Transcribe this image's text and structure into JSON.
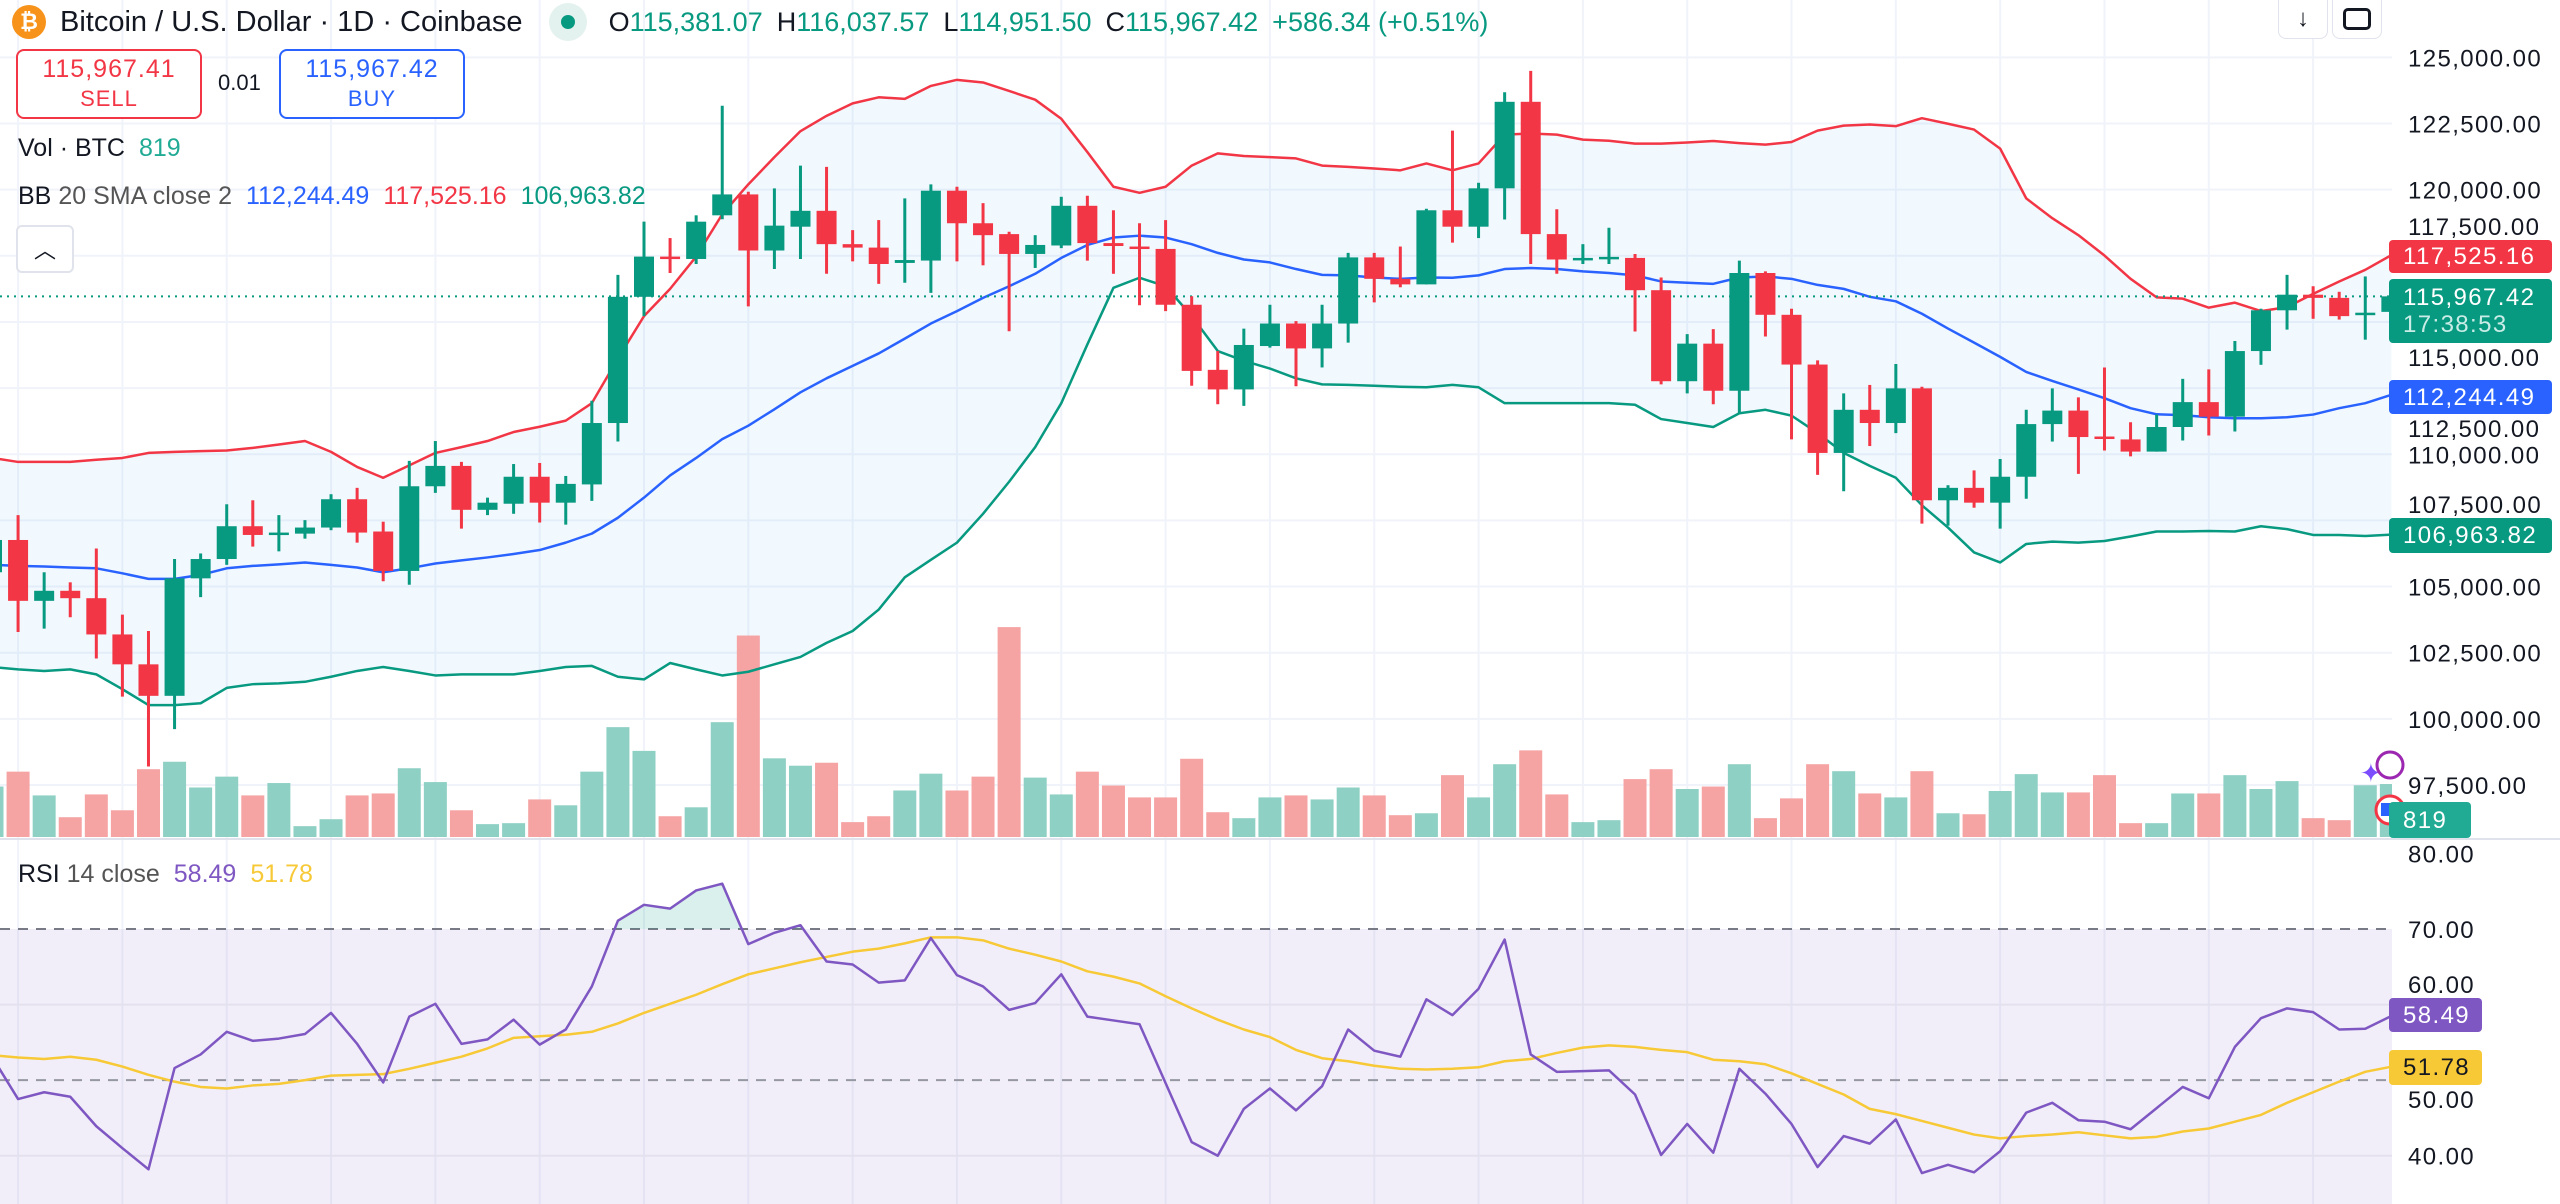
{
  "header": {
    "symbol_title": "Bitcoin / U.S. Dollar · 1D · Coinbase",
    "icon": "bitcoin-icon",
    "ohlc": [
      {
        "label": "O",
        "value": "115,381.07"
      },
      {
        "label": "H",
        "value": "116,037.57"
      },
      {
        "label": "L",
        "value": "114,951.50"
      },
      {
        "label": "C",
        "value": "115,967.42"
      }
    ],
    "change": "+586.34 (+0.51%)"
  },
  "toolbar": {
    "download_icon": "arrow-down-icon",
    "fullscreen_icon": "fullscreen-icon"
  },
  "trade": {
    "sell_price": "115,967.41",
    "sell_label": "SELL",
    "spread": "0.01",
    "buy_price": "115,967.42",
    "buy_label": "BUY"
  },
  "legends": {
    "volume": {
      "name": "Vol · BTC",
      "value": "819"
    },
    "bb": {
      "name": "BB",
      "params": "20 SMA close 2",
      "basis": "112,244.49",
      "upper": "117,525.16",
      "lower": "106,963.82"
    },
    "rsi": {
      "name": "RSI",
      "params": "14 close",
      "value": "58.49",
      "ma": "51.78"
    },
    "collapse_icon": "chevron-up-icon"
  },
  "axis_tags": {
    "bb_upper": "117,525.16",
    "last_price": "115,967.42",
    "countdown": "17:38:53",
    "bb_basis": "112,244.49",
    "bb_lower": "106,963.82",
    "volume": "819",
    "rsi": "58.49",
    "rsi_ma": "51.78"
  },
  "colors": {
    "up": "#089981",
    "down": "#F23645",
    "vol_up": "#8fd0c5",
    "vol_down": "#f5a3a3",
    "bb_upper": "#F23645",
    "bb_basis": "#2962FF",
    "bb_lower": "#089981",
    "rsi": "#7E57C2",
    "rsi_ma": "#F7C936",
    "bitcoin": "#F7931A"
  },
  "chart_data": {
    "type": "candlestick",
    "price_axis_labels": [
      "125,000.00",
      "122,500.00",
      "120,000.00",
      "117,500.00",
      "115,000.00",
      "112,500.00",
      "110,000.00",
      "107,500.00",
      "105,000.00",
      "102,500.00",
      "100,000.00",
      "97,500.00"
    ],
    "rsi_axis_labels": [
      "80.00",
      "70.00",
      "60.00",
      "50.00",
      "40.00"
    ],
    "rsi_levels": {
      "upper": 70,
      "middle": 50
    },
    "ohlc": [
      [
        105540,
        107230,
        105160,
        106760
      ],
      [
        106760,
        107700,
        103280,
        104460
      ],
      [
        104460,
        105540,
        103410,
        104840
      ],
      [
        104840,
        105160,
        103840,
        104560
      ],
      [
        104560,
        106440,
        102280,
        103190
      ],
      [
        103190,
        103940,
        100840,
        102060
      ],
      [
        102060,
        103320,
        98200,
        100870
      ],
      [
        100870,
        106040,
        99610,
        105310
      ],
      [
        105310,
        106250,
        104600,
        106040
      ],
      [
        106040,
        108110,
        105820,
        107280
      ],
      [
        107280,
        108260,
        106510,
        106950
      ],
      [
        106950,
        107700,
        106330,
        107040
      ],
      [
        107000,
        107510,
        106810,
        107230
      ],
      [
        107230,
        108490,
        107130,
        108300
      ],
      [
        108300,
        108730,
        106660,
        107040
      ],
      [
        107080,
        107450,
        105200,
        105590
      ],
      [
        105590,
        109750,
        105070,
        108790
      ],
      [
        108790,
        110500,
        108540,
        109560
      ],
      [
        109560,
        109710,
        107190,
        107900
      ],
      [
        107900,
        108360,
        107700,
        108170
      ],
      [
        108130,
        109630,
        107750,
        109150
      ],
      [
        109150,
        109670,
        107420,
        108170
      ],
      [
        108170,
        109180,
        107340,
        108880
      ],
      [
        108860,
        112020,
        108240,
        111180
      ],
      [
        111180,
        116780,
        110480,
        115950
      ],
      [
        115950,
        118790,
        115220,
        117470
      ],
      [
        117470,
        118170,
        116850,
        117380
      ],
      [
        117380,
        119030,
        117190,
        118790
      ],
      [
        119030,
        123170,
        118880,
        119820
      ],
      [
        119820,
        119920,
        115590,
        117700
      ],
      [
        117700,
        120050,
        117000,
        118640
      ],
      [
        118600,
        120910,
        117380,
        119200
      ],
      [
        119200,
        120860,
        116820,
        117940
      ],
      [
        117940,
        118470,
        117290,
        117810
      ],
      [
        117810,
        118850,
        116440,
        117190
      ],
      [
        117230,
        119670,
        116480,
        117340
      ],
      [
        117320,
        120200,
        116100,
        119960
      ],
      [
        119960,
        120110,
        117290,
        118730
      ],
      [
        118730,
        119490,
        117140,
        118280
      ],
      [
        118320,
        118410,
        114650,
        117570
      ],
      [
        117570,
        118280,
        117040,
        117910
      ],
      [
        117890,
        119730,
        117790,
        119390
      ],
      [
        119390,
        119770,
        117320,
        117980
      ],
      [
        117980,
        119220,
        116820,
        117870
      ],
      [
        117850,
        118730,
        115630,
        117760
      ],
      [
        117760,
        118850,
        115410,
        115650
      ],
      [
        115650,
        115970,
        112590,
        113150
      ],
      [
        113190,
        113900,
        111890,
        112450
      ],
      [
        112450,
        114750,
        111830,
        114130
      ],
      [
        114090,
        115650,
        114030,
        114940
      ],
      [
        114940,
        115030,
        112570,
        114000
      ],
      [
        114000,
        115650,
        113280,
        114940
      ],
      [
        114940,
        117610,
        114220,
        117440
      ],
      [
        117440,
        117610,
        115740,
        116630
      ],
      [
        116630,
        117850,
        116310,
        116420
      ],
      [
        116420,
        119280,
        116420,
        119220
      ],
      [
        119220,
        122230,
        118000,
        118600
      ],
      [
        118600,
        120260,
        118170,
        120050
      ],
      [
        120050,
        123680,
        118870,
        123320
      ],
      [
        123320,
        124490,
        117190,
        118320
      ],
      [
        118320,
        119260,
        116820,
        117360
      ],
      [
        117340,
        117940,
        117190,
        117420
      ],
      [
        117380,
        118560,
        117190,
        117460
      ],
      [
        117420,
        117570,
        114640,
        116200
      ],
      [
        116200,
        116680,
        112640,
        112760
      ],
      [
        112760,
        114540,
        112300,
        114180
      ],
      [
        114180,
        114730,
        111890,
        112400
      ],
      [
        112400,
        117320,
        111550,
        116850
      ],
      [
        116850,
        116910,
        114450,
        115270
      ],
      [
        115270,
        115500,
        110560,
        113390
      ],
      [
        113390,
        113550,
        109220,
        110050
      ],
      [
        110050,
        112300,
        108600,
        111680
      ],
      [
        111680,
        112620,
        110310,
        111180
      ],
      [
        111180,
        113410,
        110800,
        112490
      ],
      [
        112490,
        112550,
        107380,
        108260
      ],
      [
        108260,
        108830,
        107300,
        108730
      ],
      [
        108730,
        109390,
        107980,
        108170
      ],
      [
        108170,
        109820,
        107190,
        109150
      ],
      [
        109150,
        111680,
        108320,
        111140
      ],
      [
        111140,
        112490,
        110480,
        111650
      ],
      [
        111650,
        112150,
        109260,
        110650
      ],
      [
        110670,
        113280,
        110140,
        110610
      ],
      [
        110560,
        111210,
        109920,
        110100
      ],
      [
        110100,
        111500,
        110100,
        111030
      ],
      [
        111030,
        112850,
        110520,
        111970
      ],
      [
        111970,
        113210,
        110710,
        111420
      ],
      [
        111420,
        114280,
        110860,
        113900
      ],
      [
        113900,
        115500,
        113380,
        115440
      ],
      [
        115440,
        116780,
        114710,
        116030
      ],
      [
        116030,
        116350,
        115120,
        115910
      ],
      [
        115910,
        116140,
        115090,
        115220
      ],
      [
        115270,
        116720,
        114330,
        115350
      ],
      [
        115381.07,
        116037.57,
        114951.5,
        115967.42
      ]
    ],
    "volume": [
      780,
      1010,
      643,
      306,
      658,
      413,
      1048,
      1163,
      765,
      933,
      643,
      834,
      168,
      275,
      643,
      673,
      1063,
      849,
      413,
      199,
      214,
      581,
      490,
      1010,
      1698,
      1331,
      321,
      459,
      1775,
      3114,
      1216,
      1102,
      1148,
      230,
      321,
      719,
      979,
      719,
      933,
      3244,
      918,
      658,
      1010,
      796,
      612,
      612,
      1209,
      383,
      291,
      612,
      643,
      581,
      765,
      643,
      337,
      367,
      956,
      612,
      1125,
      1339,
      658,
      230,
      260,
      895,
      1048,
      742,
      780,
      1125,
      291,
      597,
      1125,
      1017,
      673,
      612,
      1017,
      367,
      352,
      711,
      972,
      689,
      689,
      956,
      214,
      214,
      673,
      673,
      956,
      742,
      864,
      291,
      260,
      800,
      819
    ],
    "bb_upper": [
      109860,
      109710,
      109710,
      109710,
      109790,
      109860,
      110050,
      110090,
      110120,
      110140,
      110240,
      110370,
      110500,
      110090,
      109520,
      109110,
      109580,
      110050,
      110270,
      110500,
      110840,
      111040,
      111270,
      111930,
      113620,
      115220,
      116250,
      117470,
      119070,
      120200,
      121230,
      122210,
      122790,
      123260,
      123490,
      123430,
      123920,
      124150,
      124050,
      123730,
      123400,
      122680,
      121420,
      120110,
      119880,
      120110,
      120910,
      121370,
      121270,
      121230,
      121180,
      120910,
      120860,
      120800,
      120730,
      120990,
      120730,
      120990,
      122080,
      122120,
      122080,
      121890,
      121850,
      121740,
      121740,
      121780,
      121840,
      121760,
      121700,
      121800,
      122230,
      122420,
      122460,
      122400,
      122700,
      122490,
      122270,
      121550,
      119670,
      118920,
      118280,
      117510,
      116630,
      115930,
      115880,
      115540,
      115730,
      115410,
      115560,
      116060,
      116530,
      116970,
      117525.16
    ],
    "bb_basis": [
      105820,
      105780,
      105760,
      105720,
      105690,
      105500,
      105290,
      105290,
      105440,
      105690,
      105780,
      105840,
      105910,
      105820,
      105720,
      105540,
      105690,
      105870,
      105990,
      106100,
      106230,
      106380,
      106660,
      107000,
      107600,
      108360,
      109200,
      109860,
      110570,
      111080,
      111700,
      112340,
      112870,
      113340,
      113810,
      114370,
      114940,
      115410,
      115910,
      116350,
      116820,
      117420,
      117910,
      118190,
      118260,
      118190,
      117940,
      117610,
      117360,
      117250,
      117000,
      116780,
      116760,
      116680,
      116630,
      116680,
      116670,
      116760,
      117000,
      117040,
      117000,
      116910,
      116850,
      116760,
      116530,
      116480,
      116440,
      116680,
      116720,
      116630,
      116400,
      116250,
      115950,
      115780,
      115310,
      114750,
      114220,
      113680,
      113110,
      112770,
      112450,
      112120,
      111740,
      111510,
      111480,
      111400,
      111360,
      111360,
      111400,
      111500,
      111740,
      111930,
      112244.49
    ],
    "bb_lower": [
      101960,
      101870,
      101810,
      101870,
      101680,
      101120,
      100520,
      100520,
      100590,
      101170,
      101310,
      101340,
      101400,
      101590,
      101810,
      101960,
      101810,
      101640,
      101680,
      101680,
      101680,
      101810,
      101960,
      102000,
      101590,
      101490,
      102110,
      101870,
      101640,
      101780,
      102060,
      102340,
      102870,
      103320,
      104130,
      105350,
      106010,
      106660,
      107750,
      108960,
      110270,
      111930,
      114150,
      116290,
      116670,
      116350,
      115220,
      113900,
      113530,
      113240,
      112870,
      112640,
      112620,
      112590,
      112550,
      112530,
      112620,
      112530,
      111930,
      111930,
      111930,
      111930,
      111930,
      111870,
      111330,
      111180,
      111030,
      111550,
      111680,
      111460,
      110800,
      110050,
      109560,
      109110,
      108070,
      107230,
      106290,
      105910,
      106610,
      106700,
      106660,
      106720,
      106890,
      107080,
      107080,
      107100,
      107080,
      107280,
      107170,
      106950,
      106950,
      106910,
      106963.82
    ],
    "rsi": [
      53.1,
      47.5,
      48.4,
      47.8,
      43.9,
      41.0,
      38.2,
      51.6,
      53.4,
      56.4,
      55.2,
      55.5,
      56.1,
      58.9,
      54.8,
      49.7,
      58.4,
      60.1,
      54.8,
      55.4,
      58.0,
      54.7,
      56.7,
      62.4,
      71.1,
      73.2,
      72.7,
      75.1,
      76.0,
      68.0,
      69.5,
      70.5,
      65.7,
      65.3,
      62.9,
      63.2,
      68.8,
      63.9,
      62.4,
      59.3,
      60.2,
      64.0,
      58.4,
      57.9,
      57.4,
      49.6,
      41.8,
      40.0,
      46.2,
      48.9,
      46.0,
      49.2,
      56.7,
      53.9,
      53.1,
      60.7,
      58.6,
      62.1,
      68.6,
      53.4,
      51.1,
      51.2,
      51.3,
      48.1,
      40.1,
      44.2,
      40.4,
      51.5,
      48.2,
      44.2,
      38.5,
      42.6,
      41.6,
      44.8,
      37.7,
      38.8,
      37.8,
      40.6,
      45.7,
      47.0,
      44.7,
      44.5,
      43.5,
      46.3,
      49.1,
      47.6,
      54.4,
      58.2,
      59.5,
      59.0,
      56.7,
      56.8,
      58.49
    ],
    "rsi_ma": [
      53.3,
      53.0,
      52.8,
      53.1,
      52.7,
      51.8,
      50.7,
      49.8,
      49.1,
      48.9,
      49.3,
      49.5,
      50.0,
      50.6,
      50.7,
      50.8,
      51.5,
      52.3,
      53.1,
      54.2,
      55.6,
      55.8,
      56.0,
      56.4,
      57.5,
      58.9,
      60.1,
      61.3,
      62.7,
      64.0,
      64.8,
      65.6,
      66.3,
      67.0,
      67.4,
      68.1,
      68.9,
      68.9,
      68.5,
      67.4,
      66.6,
      65.7,
      64.4,
      63.7,
      62.8,
      61.1,
      59.5,
      58.0,
      56.7,
      55.7,
      54.0,
      52.9,
      52.5,
      51.9,
      51.5,
      51.4,
      51.5,
      51.7,
      52.5,
      52.8,
      53.6,
      54.3,
      54.6,
      54.4,
      54.0,
      53.7,
      52.7,
      52.5,
      52.1,
      50.9,
      49.5,
      48.1,
      46.2,
      45.5,
      44.6,
      43.7,
      42.8,
      42.3,
      42.6,
      42.8,
      43.1,
      42.7,
      42.3,
      42.5,
      43.2,
      43.6,
      44.5,
      45.4,
      47.0,
      48.4,
      49.8,
      51.1,
      51.78
    ],
    "grid": true
  }
}
